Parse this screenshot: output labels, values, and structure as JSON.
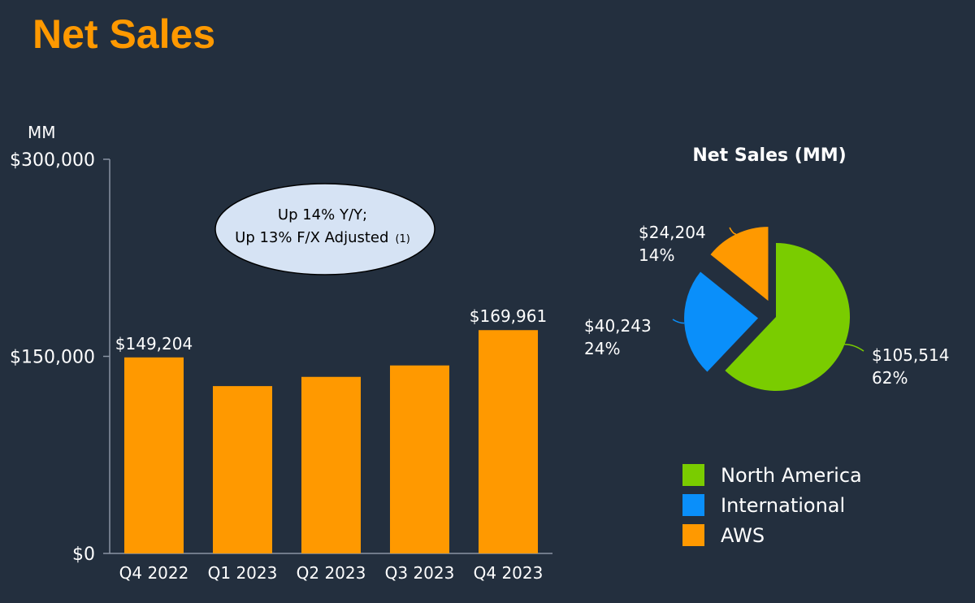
{
  "title": "Net Sales",
  "colors": {
    "background": "#232f3e",
    "title": "#ff9900",
    "bar": "#ff9900",
    "north_america": "#7acc00",
    "international": "#0a8ffa",
    "aws": "#ff9900",
    "callout_fill": "#d6e3f4"
  },
  "callout": {
    "line1": "Up 14% Y/Y;",
    "line2": "Up 13% F/X Adjusted",
    "footnote": "(1)"
  },
  "chart_data": [
    {
      "type": "bar",
      "unit_label": "MM",
      "categories": [
        "Q4 2022",
        "Q1 2023",
        "Q2 2023",
        "Q3 2023",
        "Q4 2023"
      ],
      "values": [
        149204,
        127358,
        134383,
        143083,
        169961
      ],
      "data_labels": [
        "$149,204",
        "",
        "",
        "",
        "$169,961"
      ],
      "ylim": [
        0,
        300000
      ],
      "yticks": [
        0,
        150000,
        300000
      ],
      "ytick_labels": [
        "$0",
        "$150,000",
        "$300,000"
      ],
      "grid": false
    },
    {
      "type": "pie",
      "title": "Net Sales (MM)",
      "slices": [
        {
          "name": "North America",
          "value": 105514,
          "value_label": "$105,514",
          "percent_label": "62%",
          "color": "#7acc00",
          "exploded": false
        },
        {
          "name": "International",
          "value": 40243,
          "value_label": "$40,243",
          "percent_label": "24%",
          "color": "#0a8ffa",
          "exploded": true
        },
        {
          "name": "AWS",
          "value": 24204,
          "value_label": "$24,204",
          "percent_label": "14%",
          "color": "#ff9900",
          "exploded": true
        }
      ],
      "legend": [
        "North America",
        "International",
        "AWS"
      ],
      "legend_position": "bottom-right"
    }
  ]
}
